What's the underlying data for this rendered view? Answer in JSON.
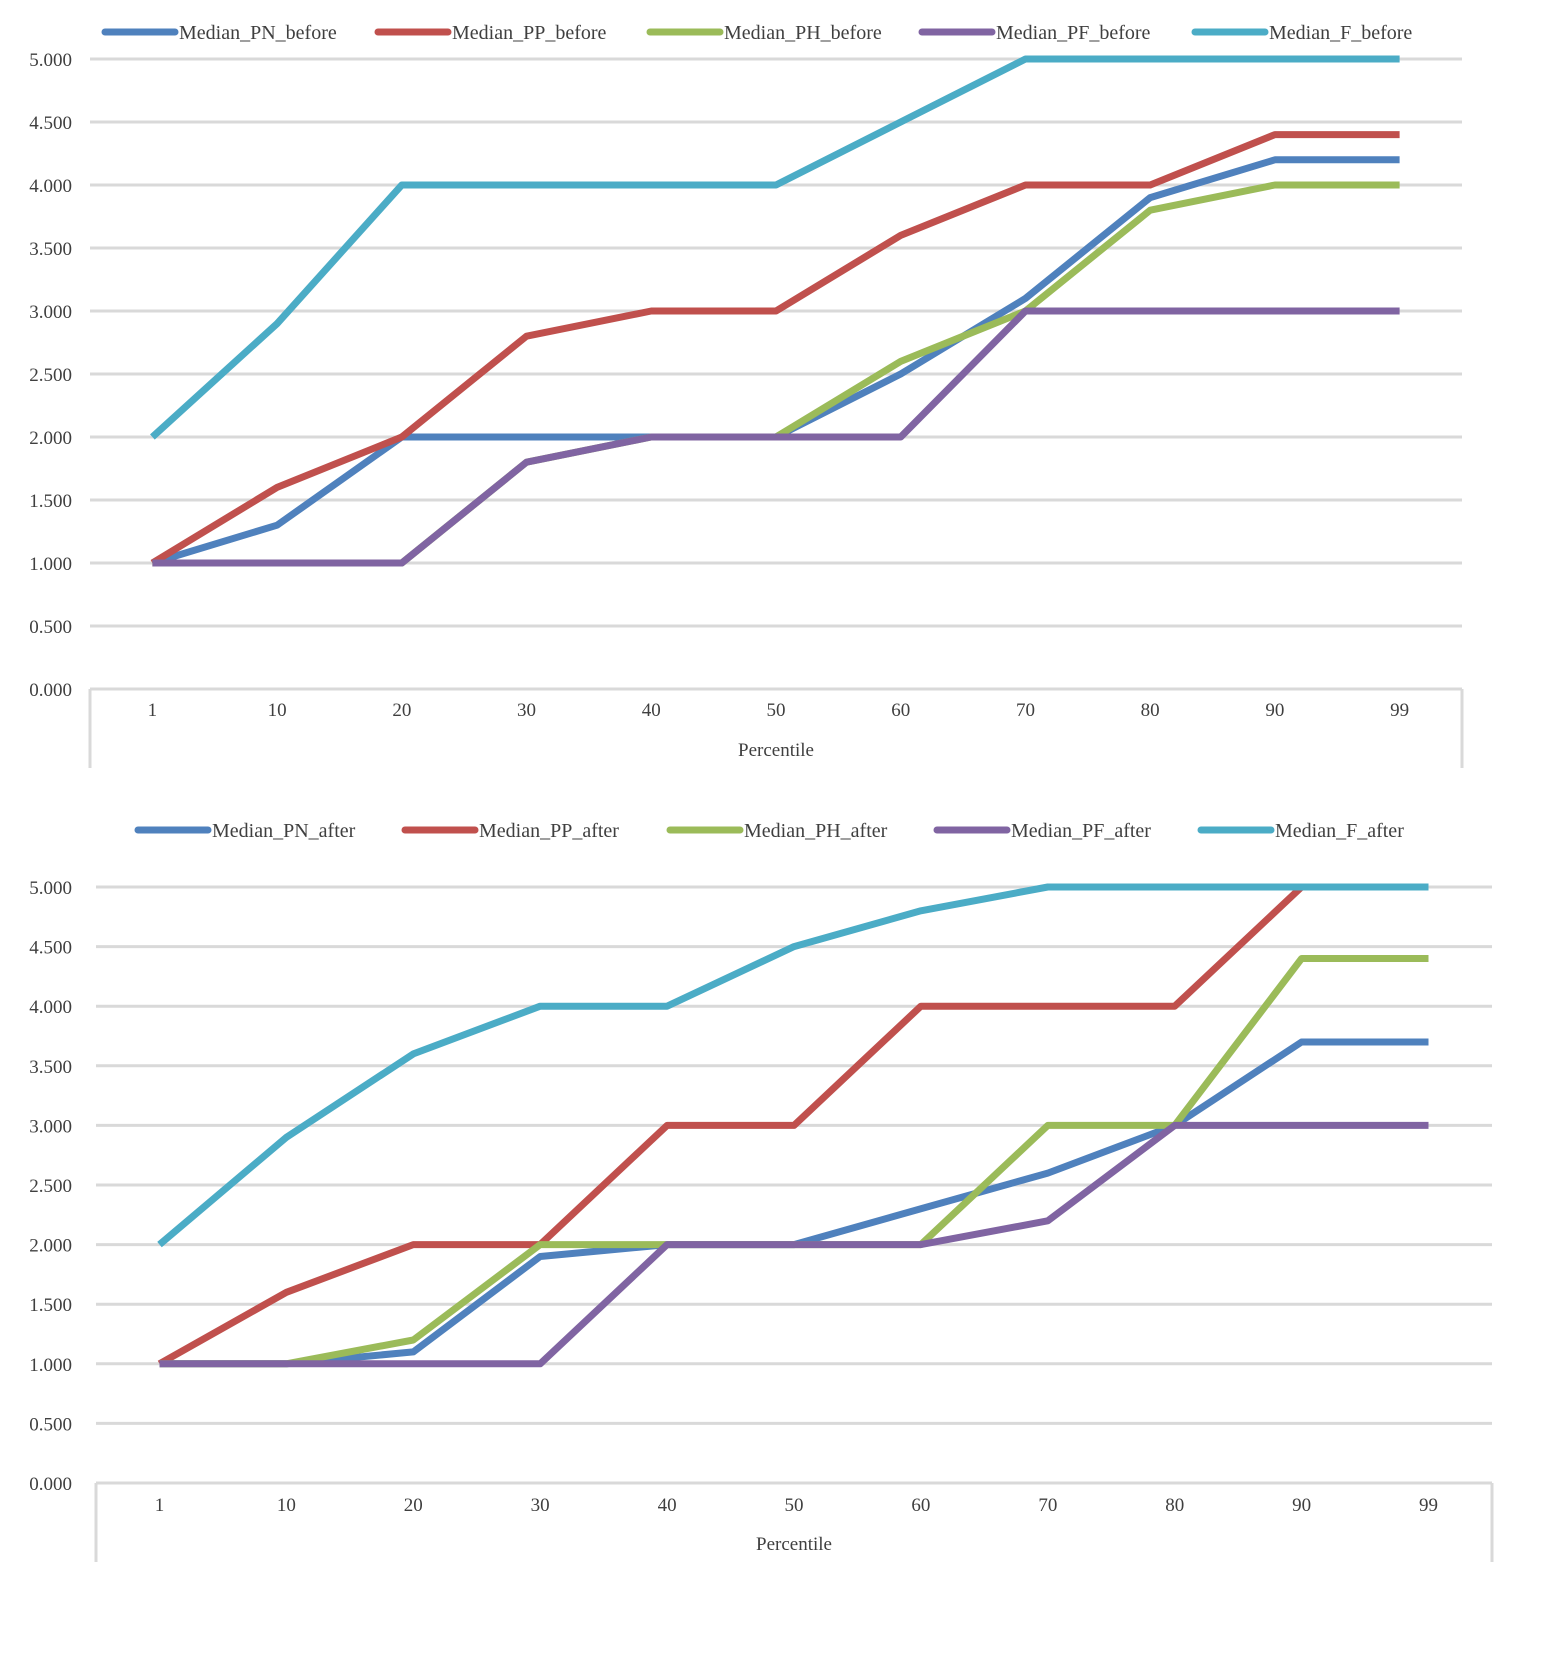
{
  "chart_data": [
    {
      "type": "line",
      "title": "",
      "xlabel": "Percentile",
      "ylabel": "",
      "categories": [
        "1",
        "10",
        "20",
        "30",
        "40",
        "50",
        "60",
        "70",
        "80",
        "90",
        "99"
      ],
      "ylim": [
        0,
        5
      ],
      "yticks": [
        "0.000",
        "0.500",
        "1.000",
        "1.500",
        "2.000",
        "2.500",
        "3.000",
        "3.500",
        "4.000",
        "4.500",
        "5.000"
      ],
      "grid": true,
      "legend_position": "top",
      "series": [
        {
          "name": "Median_PN_before",
          "color": "#4f81bd",
          "values": [
            1.0,
            1.3,
            2.0,
            2.0,
            2.0,
            2.0,
            2.5,
            3.1,
            3.9,
            4.2,
            4.2
          ]
        },
        {
          "name": "Median_PP_before",
          "color": "#c0504d",
          "values": [
            1.0,
            1.6,
            2.0,
            2.8,
            3.0,
            3.0,
            3.6,
            4.0,
            4.0,
            4.4,
            4.4
          ]
        },
        {
          "name": "Median_PH_before",
          "color": "#9bbb59",
          "values": [
            1.0,
            1.0,
            1.0,
            1.8,
            2.0,
            2.0,
            2.6,
            3.0,
            3.8,
            4.0,
            4.0
          ]
        },
        {
          "name": "Median_PF_before",
          "color": "#8064a2",
          "values": [
            1.0,
            1.0,
            1.0,
            1.8,
            2.0,
            2.0,
            2.0,
            3.0,
            3.0,
            3.0,
            3.0
          ]
        },
        {
          "name": "Median_F_before",
          "color": "#4bacc6",
          "values": [
            2.0,
            2.9,
            4.0,
            4.0,
            4.0,
            4.0,
            4.5,
            5.0,
            5.0,
            5.0,
            5.0
          ]
        }
      ]
    },
    {
      "type": "line",
      "title": "",
      "xlabel": "Percentile",
      "ylabel": "",
      "categories": [
        "1",
        "10",
        "20",
        "30",
        "40",
        "50",
        "60",
        "70",
        "80",
        "90",
        "99"
      ],
      "ylim": [
        0,
        5
      ],
      "yticks": [
        "0.000",
        "0.500",
        "1.000",
        "1.500",
        "2.000",
        "2.500",
        "3.000",
        "3.500",
        "4.000",
        "4.500",
        "5.000"
      ],
      "grid": true,
      "legend_position": "top",
      "series": [
        {
          "name": "Median_PN_after",
          "color": "#4f81bd",
          "values": [
            1.0,
            1.0,
            1.1,
            1.9,
            2.0,
            2.0,
            2.3,
            2.6,
            3.0,
            3.7,
            3.7
          ]
        },
        {
          "name": "Median_PP_after",
          "color": "#c0504d",
          "values": [
            1.0,
            1.6,
            2.0,
            2.0,
            3.0,
            3.0,
            4.0,
            4.0,
            4.0,
            5.0,
            5.0
          ]
        },
        {
          "name": "Median_PH_after",
          "color": "#9bbb59",
          "values": [
            1.0,
            1.0,
            1.2,
            2.0,
            2.0,
            2.0,
            2.0,
            3.0,
            3.0,
            4.4,
            4.4
          ]
        },
        {
          "name": "Median_PF_after",
          "color": "#8064a2",
          "values": [
            1.0,
            1.0,
            1.0,
            1.0,
            2.0,
            2.0,
            2.0,
            2.2,
            3.0,
            3.0,
            3.0
          ]
        },
        {
          "name": "Median_F_after",
          "color": "#4bacc6",
          "values": [
            2.0,
            2.9,
            3.6,
            4.0,
            4.0,
            4.5,
            4.8,
            5.0,
            5.0,
            5.0,
            5.0
          ]
        }
      ]
    }
  ]
}
